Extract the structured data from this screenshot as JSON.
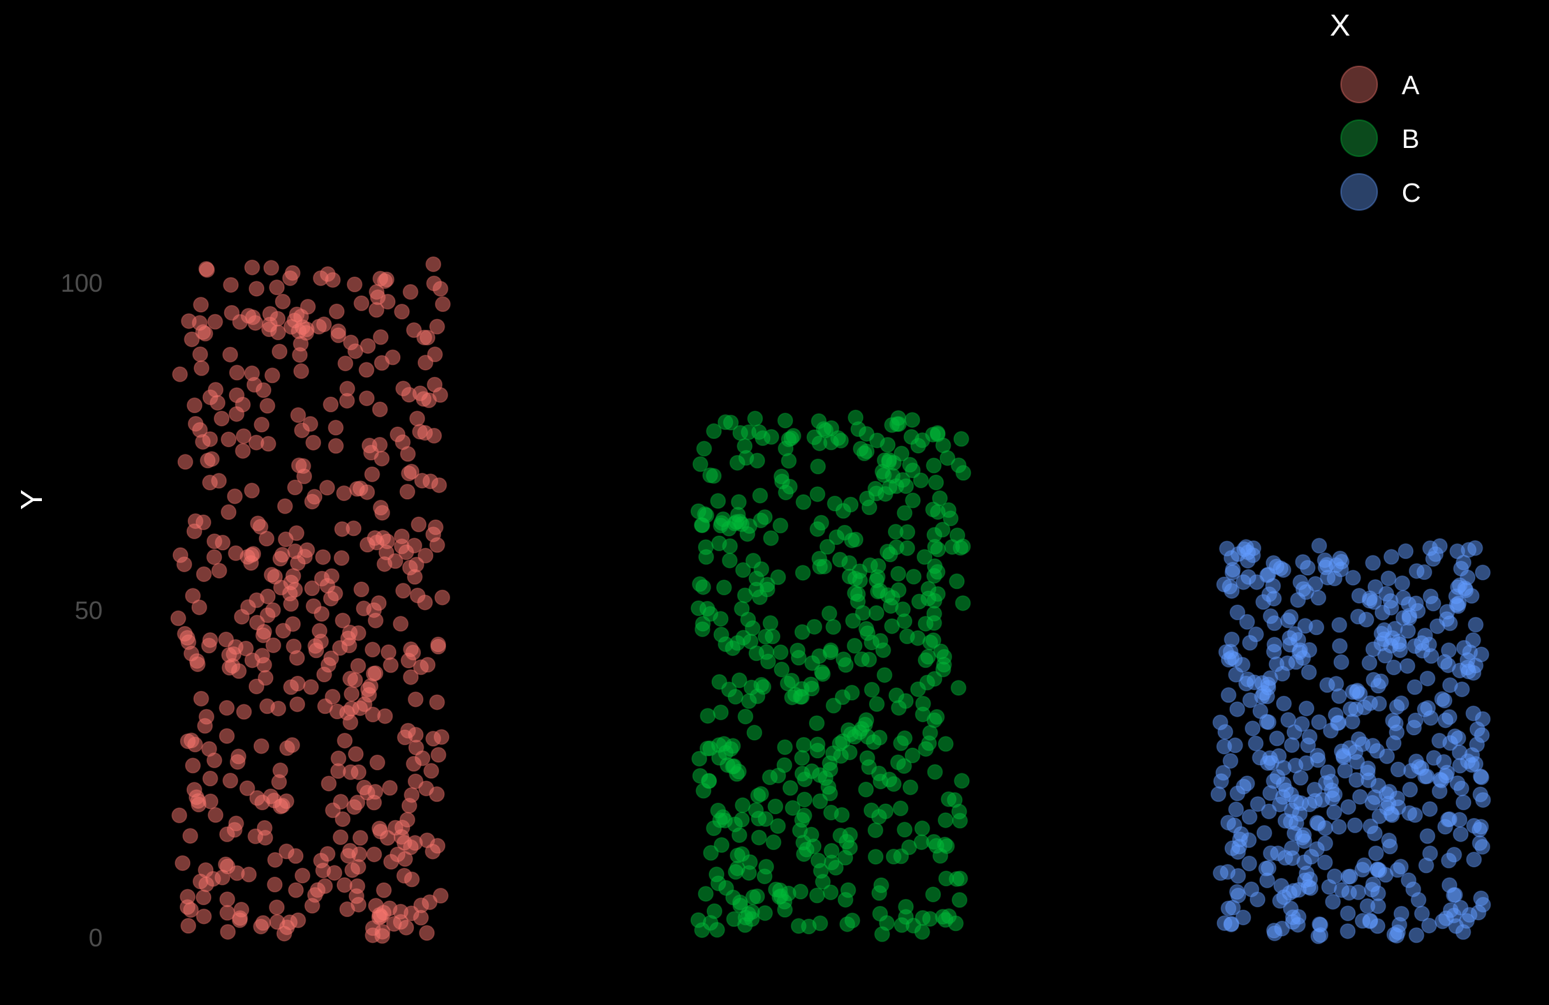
{
  "chart_data": {
    "type": "scatter",
    "title": "",
    "xlabel": "",
    "ylabel": "Y",
    "categories": [
      "A",
      "B",
      "C"
    ],
    "ylim": [
      -1,
      104
    ],
    "yticks": [
      0,
      50,
      100
    ],
    "grid": false,
    "legend": {
      "title": "X",
      "position": "top-right"
    },
    "background": "#000000",
    "series": [
      {
        "name": "A",
        "color": "#f8766d",
        "legend_color": "#5e2f2c",
        "y_range": [
          0,
          103
        ],
        "n_points": 500
      },
      {
        "name": "B",
        "color": "#00ba38",
        "legend_color": "#0b4a1c",
        "y_range": [
          0,
          80
        ],
        "n_points": 500
      },
      {
        "name": "C",
        "color": "#619cff",
        "legend_color": "#2a4168",
        "y_range": [
          0,
          60
        ],
        "n_points": 500
      }
    ]
  }
}
